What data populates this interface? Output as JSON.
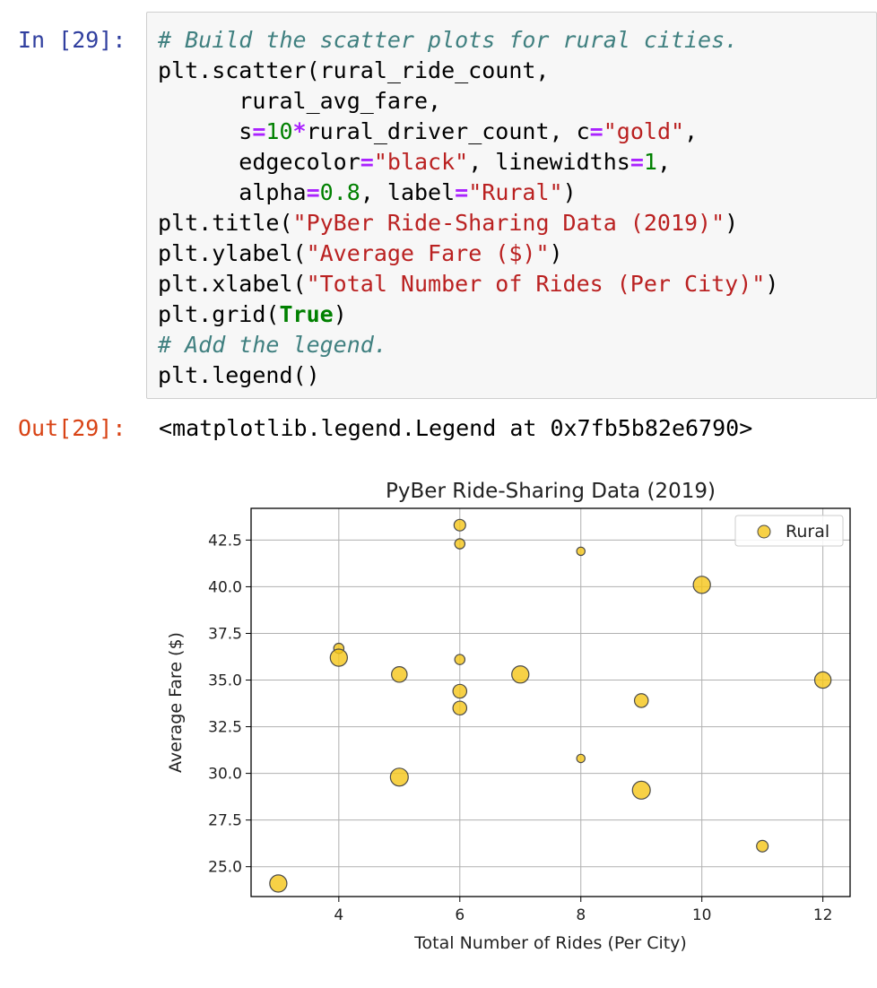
{
  "cell": {
    "in_prompt": "In [29]:",
    "out_prompt": "Out[29]:",
    "output_text": "<matplotlib.legend.Legend at 0x7fb5b82e6790>",
    "code_lines": [
      [
        {
          "t": "c",
          "v": "# Build the scatter plots for rural cities."
        }
      ],
      [
        {
          "t": "p",
          "v": "plt.scatter(rural_ride_count,"
        }
      ],
      [
        {
          "t": "p",
          "v": "      rural_avg_fare,"
        }
      ],
      [
        {
          "t": "p",
          "v": "      s"
        },
        {
          "t": "o",
          "v": "="
        },
        {
          "t": "n",
          "v": "10"
        },
        {
          "t": "o",
          "v": "*"
        },
        {
          "t": "p",
          "v": "rural_driver_count, c"
        },
        {
          "t": "o",
          "v": "="
        },
        {
          "t": "s",
          "v": "\"gold\""
        },
        {
          "t": "p",
          "v": ","
        }
      ],
      [
        {
          "t": "p",
          "v": "      edgecolor"
        },
        {
          "t": "o",
          "v": "="
        },
        {
          "t": "s",
          "v": "\"black\""
        },
        {
          "t": "p",
          "v": ", linewidths"
        },
        {
          "t": "o",
          "v": "="
        },
        {
          "t": "n",
          "v": "1"
        },
        {
          "t": "p",
          "v": ","
        }
      ],
      [
        {
          "t": "p",
          "v": "      alpha"
        },
        {
          "t": "o",
          "v": "="
        },
        {
          "t": "n",
          "v": "0.8"
        },
        {
          "t": "p",
          "v": ", label"
        },
        {
          "t": "o",
          "v": "="
        },
        {
          "t": "s",
          "v": "\"Rural\""
        },
        {
          "t": "p",
          "v": ")"
        }
      ],
      [
        {
          "t": "p",
          "v": "plt.title("
        },
        {
          "t": "s",
          "v": "\"PyBer Ride-Sharing Data (2019)\""
        },
        {
          "t": "p",
          "v": ")"
        }
      ],
      [
        {
          "t": "p",
          "v": "plt.ylabel("
        },
        {
          "t": "s",
          "v": "\"Average Fare ($)\""
        },
        {
          "t": "p",
          "v": ")"
        }
      ],
      [
        {
          "t": "p",
          "v": "plt.xlabel("
        },
        {
          "t": "s",
          "v": "\"Total Number of Rides (Per City)\""
        },
        {
          "t": "p",
          "v": ")"
        }
      ],
      [
        {
          "t": "p",
          "v": "plt.grid("
        },
        {
          "t": "k",
          "v": "True"
        },
        {
          "t": "p",
          "v": ")"
        }
      ],
      [
        {
          "t": "c",
          "v": "# Add the legend."
        }
      ],
      [
        {
          "t": "p",
          "v": "plt.legend()"
        }
      ]
    ]
  },
  "colors": {
    "marker_fill": "#f5c518",
    "marker_edge": "#4a4a4a",
    "grid": "#b0b0b0",
    "axes": "#000000"
  },
  "chart_data": {
    "type": "scatter",
    "title": "PyBer Ride-Sharing Data (2019)",
    "xlabel": "Total Number of Rides (Per City)",
    "ylabel": "Average Fare ($)",
    "xlim": [
      2.55,
      12.45
    ],
    "ylim": [
      23.4,
      44.2
    ],
    "xticks": [
      4,
      6,
      8,
      10,
      12
    ],
    "yticks": [
      25.0,
      27.5,
      30.0,
      32.5,
      35.0,
      37.5,
      40.0,
      42.5
    ],
    "xtick_labels": [
      "4",
      "6",
      "8",
      "10",
      "12"
    ],
    "ytick_labels": [
      "25.0",
      "27.5",
      "30.0",
      "32.5",
      "35.0",
      "37.5",
      "40.0",
      "42.5"
    ],
    "grid": true,
    "legend": "upper-right",
    "series": [
      {
        "name": "Rural",
        "points": [
          {
            "x": 3,
            "y": 24.1,
            "size": 9
          },
          {
            "x": 4,
            "y": 36.7,
            "size": 2
          },
          {
            "x": 4,
            "y": 36.2,
            "size": 9
          },
          {
            "x": 5,
            "y": 35.3,
            "size": 7
          },
          {
            "x": 5,
            "y": 29.8,
            "size": 10
          },
          {
            "x": 6,
            "y": 43.3,
            "size": 3
          },
          {
            "x": 6,
            "y": 42.3,
            "size": 2
          },
          {
            "x": 6,
            "y": 36.1,
            "size": 2
          },
          {
            "x": 6,
            "y": 34.4,
            "size": 5
          },
          {
            "x": 6,
            "y": 33.5,
            "size": 5
          },
          {
            "x": 7,
            "y": 35.3,
            "size": 9
          },
          {
            "x": 8,
            "y": 41.9,
            "size": 1
          },
          {
            "x": 8,
            "y": 30.8,
            "size": 1
          },
          {
            "x": 9,
            "y": 33.9,
            "size": 5
          },
          {
            "x": 9,
            "y": 29.1,
            "size": 10
          },
          {
            "x": 10,
            "y": 40.1,
            "size": 9
          },
          {
            "x": 11,
            "y": 26.1,
            "size": 3
          },
          {
            "x": 12,
            "y": 35.0,
            "size": 8
          }
        ]
      }
    ]
  }
}
